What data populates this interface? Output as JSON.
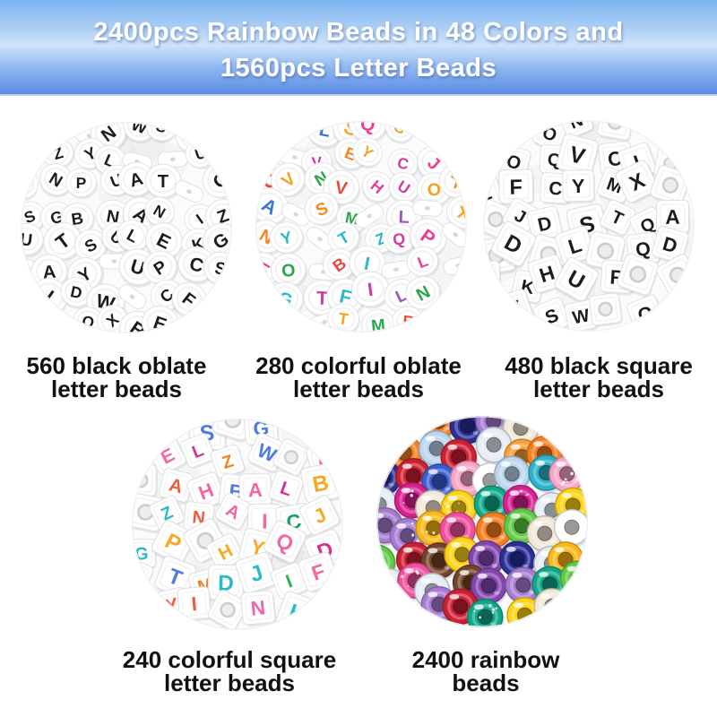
{
  "banner": {
    "title_line1": "2400pcs Rainbow Beads in 48 Colors and",
    "title_line2": "1560pcs Letter Beads",
    "text_color": "#ffffff",
    "gradient": [
      "#79b3f0",
      "#aecff5",
      "#cfe4fa",
      "#8fb6ef",
      "#5b8ce8"
    ]
  },
  "caption_color": "#111111",
  "products": [
    {
      "name": "black oblate letter beads",
      "caption_line1": "560 black oblate",
      "caption_line2": "letter beads",
      "bead_shape": "oblate",
      "bead_color": "#ffffff",
      "letters": "ABCDEFGHIJKLMNOPQRSTUVWXYZ",
      "letter_colors": [
        "#1c1c1e"
      ]
    },
    {
      "name": "colorful oblate letter beads",
      "caption_line1": "280 colorful oblate",
      "caption_line2": "letter beads",
      "bead_shape": "oblate",
      "bead_color": "#ffffff",
      "letters": "ABCDEFGHIJKLMNOPQRSTUVWXYZ",
      "letter_colors": [
        "#2bb8c9",
        "#f6861f",
        "#ee3d8f",
        "#9b59c7",
        "#27a74a",
        "#3d74d8",
        "#e8483d",
        "#f7a11c",
        "#cf3ba0"
      ]
    },
    {
      "name": "black square letter beads",
      "caption_line1": "480 black square",
      "caption_line2": "letter beads",
      "bead_shape": "cube",
      "bead_color": "#ffffff",
      "letters": "ABCDEFGHIJKLMNOPQRSTUVWXYZ",
      "letter_colors": [
        "#1c1c1e"
      ]
    },
    {
      "name": "colorful square letter beads",
      "caption_line1": "240 colorful square",
      "caption_line2": "letter beads",
      "bead_shape": "cube",
      "bead_color": "#ffffff",
      "letters": "ABCDEFGHIJKLMNOPQRSTUVWXYZ",
      "letter_colors": [
        "#f266a4",
        "#f58220",
        "#16a05e",
        "#9a6fd0",
        "#4f7be0",
        "#29b9c9",
        "#ef5b3a",
        "#d8308f",
        "#f9a825",
        "#2fb44f"
      ]
    },
    {
      "name": "rainbow beads",
      "caption_line1": "2400 rainbow",
      "caption_line2": "beads",
      "bead_shape": "pony",
      "bead_colors": [
        "#f57f20",
        "#f9a13a",
        "#ffd316",
        "#fcb818",
        "#e63226",
        "#cc2035",
        "#f0509e",
        "#f7a6c9",
        "#d6218f",
        "#8347ad",
        "#a77cd1",
        "#2a2f96",
        "#3b5fd0",
        "#bcd6ee",
        "#2db3c9",
        "#22b04b",
        "#0fa888",
        "#ffffff",
        "#f2e8d7",
        "#e4ecf4",
        "#74452a",
        "#62c946"
      ]
    }
  ]
}
